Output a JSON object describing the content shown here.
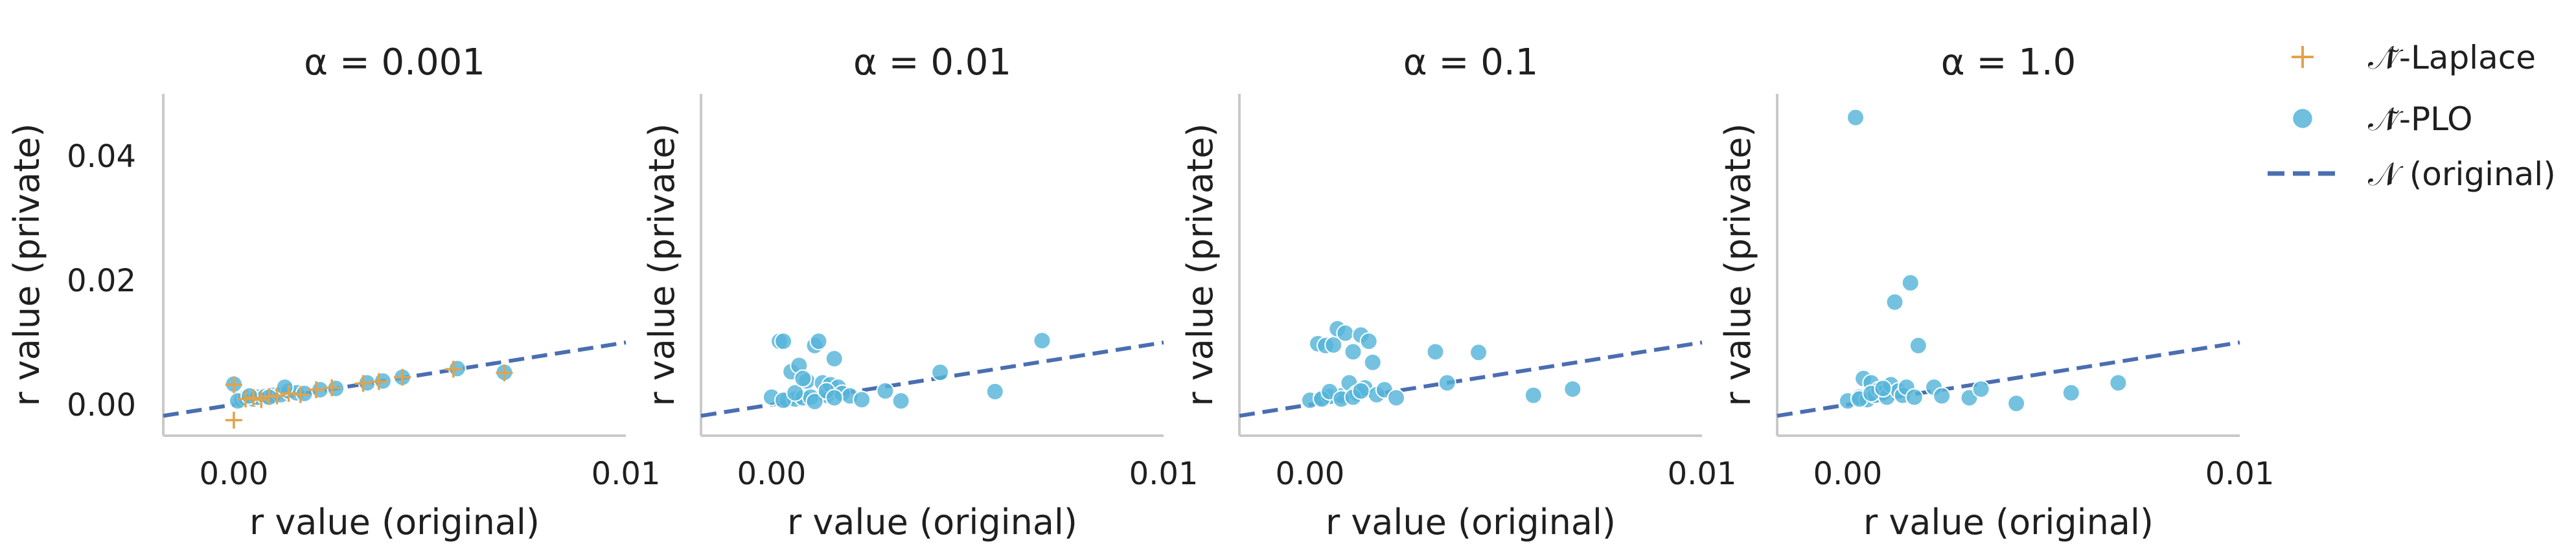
{
  "colors": {
    "laplace": "#e3a24a",
    "plo": "#56b4d9",
    "original": "#4a6eb0",
    "spine": "#c9c9c9"
  },
  "legend": {
    "laplace_label": "𝒩̃-Laplace",
    "plo_label": "𝒩̃-PLO",
    "original_label": "𝒩 (original)"
  },
  "chart_data": [
    {
      "type": "scatter",
      "title": "α = 0.001",
      "xlabel": "r value (original)",
      "ylabel": "r value (private)",
      "xlim": [
        -0.0018,
        0.01
      ],
      "ylim": [
        -0.005,
        0.05
      ],
      "xticks": [
        0.0,
        0.01
      ],
      "xtick_labels": [
        "0.00",
        "0.01"
      ],
      "yticks": [
        0.0,
        0.02,
        0.04
      ],
      "ytick_labels": [
        "0.00",
        "0.02",
        "0.04"
      ],
      "show_yticks": true,
      "line": {
        "name": "𝒩 (original)",
        "x": [
          -0.0018,
          0.01
        ],
        "y": [
          -0.0018,
          0.01
        ]
      },
      "series": [
        {
          "name": "𝒩̃-PLO",
          "marker": "circle",
          "x": [
            0.0,
            0.0002,
            0.0003,
            0.0005,
            0.0006,
            0.0008,
            0.001,
            0.0012,
            0.0014,
            0.0016,
            0.0018,
            0.0022,
            0.0026,
            0.0034,
            0.0038,
            0.0043,
            0.0057,
            0.0069,
            0.0001,
            0.0004,
            0.0009,
            0.0013
          ],
          "y": [
            0.0033,
            0.0008,
            0.0011,
            0.0009,
            0.0012,
            0.0013,
            0.0015,
            0.0016,
            0.0022,
            0.0019,
            0.0018,
            0.0024,
            0.0026,
            0.0035,
            0.0038,
            0.0044,
            0.0058,
            0.0052,
            0.0006,
            0.0014,
            0.0012,
            0.0028
          ]
        },
        {
          "name": "𝒩̃-Laplace",
          "marker": "plus",
          "x": [
            0.0,
            0.0,
            0.0003,
            0.0005,
            0.0007,
            0.0009,
            0.0011,
            0.0014,
            0.0017,
            0.0021,
            0.0025,
            0.0033,
            0.0037,
            0.0043,
            0.0056,
            0.0069
          ],
          "y": [
            -0.0025,
            0.0032,
            0.0009,
            0.0011,
            0.0008,
            0.0013,
            0.0014,
            0.0018,
            0.0016,
            0.0024,
            0.0027,
            0.0034,
            0.0037,
            0.0044,
            0.0057,
            0.0051
          ]
        }
      ]
    },
    {
      "type": "scatter",
      "title": "α = 0.01",
      "xlabel": "r value (original)",
      "ylabel": "r value (private)",
      "xlim": [
        -0.0018,
        0.01
      ],
      "ylim": [
        -0.005,
        0.05
      ],
      "xticks": [
        0.0,
        0.01
      ],
      "xtick_labels": [
        "0.00",
        "0.01"
      ],
      "yticks": [
        0.0,
        0.02,
        0.04
      ],
      "ytick_labels": [
        "",
        "",
        ""
      ],
      "show_yticks": false,
      "line": {
        "name": "𝒩 (original)",
        "x": [
          -0.0018,
          0.01
        ],
        "y": [
          -0.0018,
          0.01
        ]
      },
      "series": [
        {
          "name": "𝒩̃-PLO",
          "marker": "circle",
          "x": [
            0.0,
            0.0002,
            0.0003,
            0.0004,
            0.0005,
            0.0006,
            0.0007,
            0.0008,
            0.0009,
            0.001,
            0.0011,
            0.0012,
            0.0013,
            0.0014,
            0.0015,
            0.0016,
            0.0017,
            0.0018,
            0.002,
            0.0023,
            0.0029,
            0.0033,
            0.0043,
            0.0057,
            0.0069,
            0.0003,
            0.0006,
            0.0008,
            0.0011,
            0.0014,
            0.0016
          ],
          "y": [
            0.0012,
            0.0102,
            0.0102,
            0.0008,
            0.0053,
            0.0009,
            0.0063,
            0.0011,
            0.0038,
            0.0012,
            0.0095,
            0.0102,
            0.0035,
            0.0015,
            0.0032,
            0.0074,
            0.0028,
            0.0018,
            0.0014,
            0.0008,
            0.0022,
            0.0006,
            0.0052,
            0.0021,
            0.0103,
            0.0007,
            0.0019,
            0.0042,
            0.0005,
            0.0022,
            0.0011
          ]
        }
      ]
    },
    {
      "type": "scatter",
      "title": "α = 0.1",
      "xlabel": "r value (original)",
      "ylabel": "r value (private)",
      "xlim": [
        -0.0018,
        0.01
      ],
      "ylim": [
        -0.005,
        0.05
      ],
      "xticks": [
        0.0,
        0.01
      ],
      "xtick_labels": [
        "0.00",
        "0.01"
      ],
      "yticks": [
        0.0,
        0.02,
        0.04
      ],
      "ytick_labels": [
        "",
        "",
        ""
      ],
      "show_yticks": false,
      "line": {
        "name": "𝒩 (original)",
        "x": [
          -0.0018,
          0.01
        ],
        "y": [
          -0.0018,
          0.01
        ]
      },
      "series": [
        {
          "name": "𝒩̃-PLO",
          "marker": "circle",
          "x": [
            0.0,
            0.0002,
            0.0003,
            0.0004,
            0.0005,
            0.0006,
            0.0007,
            0.0008,
            0.0009,
            0.001,
            0.0011,
            0.0012,
            0.0013,
            0.0014,
            0.0015,
            0.0016,
            0.0017,
            0.0019,
            0.0022,
            0.0032,
            0.0035,
            0.0043,
            0.0057,
            0.0067,
            0.0003,
            0.0005,
            0.0008,
            0.0011,
            0.0013
          ],
          "y": [
            0.0007,
            0.0098,
            0.0011,
            0.0095,
            0.0013,
            0.0096,
            0.0122,
            0.0014,
            0.0115,
            0.0035,
            0.0085,
            0.0018,
            0.0112,
            0.0027,
            0.0102,
            0.0068,
            0.0016,
            0.0024,
            0.0011,
            0.0085,
            0.0035,
            0.0084,
            0.0015,
            0.0025,
            0.0009,
            0.0021,
            0.0009,
            0.0012,
            0.0022
          ]
        }
      ]
    },
    {
      "type": "scatter",
      "title": "α = 1.0",
      "xlabel": "r value (original)",
      "ylabel": "r value (private)",
      "xlim": [
        -0.0018,
        0.01
      ],
      "ylim": [
        -0.005,
        0.05
      ],
      "xticks": [
        0.0,
        0.01
      ],
      "xtick_labels": [
        "0.00",
        "0.01"
      ],
      "yticks": [
        0.0,
        0.02,
        0.04
      ],
      "ytick_labels": [
        "",
        "",
        ""
      ],
      "show_yticks": false,
      "line": {
        "name": "𝒩 (original)",
        "x": [
          -0.0018,
          0.01
        ],
        "y": [
          -0.0018,
          0.01
        ]
      },
      "series": [
        {
          "name": "𝒩̃-PLO",
          "marker": "circle",
          "x": [
            0.0,
            0.0002,
            0.0003,
            0.0004,
            0.0005,
            0.0006,
            0.0007,
            0.0008,
            0.0009,
            0.001,
            0.0011,
            0.0012,
            0.0013,
            0.0014,
            0.0015,
            0.0016,
            0.0017,
            0.0018,
            0.0022,
            0.0024,
            0.0031,
            0.0034,
            0.0043,
            0.0057,
            0.0069,
            0.0003,
            0.0006,
            0.0009
          ],
          "y": [
            0.0006,
            0.0462,
            0.0012,
            0.0042,
            0.0008,
            0.0035,
            0.0015,
            0.0024,
            0.0019,
            0.0012,
            0.0032,
            0.0165,
            0.0022,
            0.0015,
            0.0028,
            0.0196,
            0.0012,
            0.0095,
            0.0028,
            0.0014,
            0.0011,
            0.0025,
            0.0002,
            0.0019,
            0.0035,
            0.0009,
            0.0018,
            0.0026
          ]
        }
      ]
    }
  ]
}
